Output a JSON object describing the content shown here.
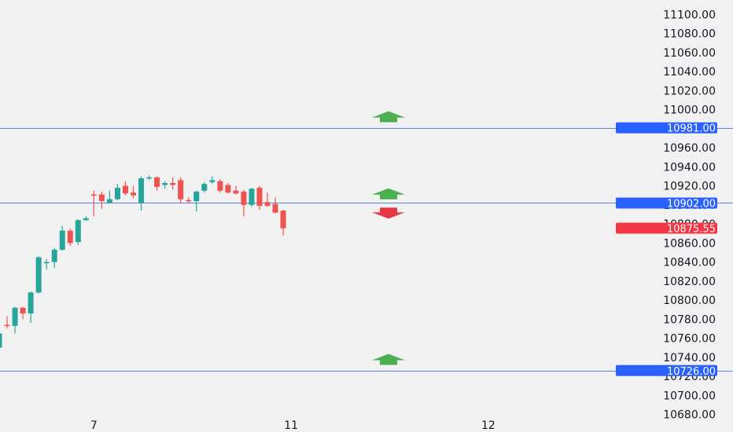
{
  "chart_data": {
    "type": "candlestick",
    "title": "",
    "xlabel": "",
    "ylabel": "",
    "ylim": [
      10680,
      11100
    ],
    "grid": false,
    "colors": {
      "up": "#26a69a",
      "down": "#ef5350",
      "level_line": "#5b7fe6",
      "level_tag": "#2962ff",
      "last_tag": "#f23645",
      "arrow_up": "#4caf50",
      "arrow_down": "#e53946",
      "background": "#f1f1f1"
    },
    "y_ticks": [
      "11100.00",
      "11080.00",
      "11060.00",
      "11040.00",
      "11020.00",
      "11000.00",
      "10980.00",
      "10960.00",
      "10940.00",
      "10920.00",
      "10900.00",
      "10880.00",
      "10860.00",
      "10840.00",
      "10820.00",
      "10800.00",
      "10780.00",
      "10760.00",
      "10740.00",
      "10720.00",
      "10700.00",
      "10680.00"
    ],
    "y_tick_values": [
      11100,
      11080,
      11060,
      11040,
      11020,
      11000,
      10980,
      10960,
      10940,
      10920,
      10900,
      10880,
      10860,
      10840,
      10820,
      10800,
      10780,
      10760,
      10740,
      10720,
      10700,
      10680
    ],
    "x_ticks": [
      {
        "label": "7",
        "index": 12
      },
      {
        "label": "11",
        "index": 37
      },
      {
        "label": "12",
        "index": 62
      }
    ],
    "candles": [
      {
        "o": 10750,
        "h": 10770,
        "l": 10748,
        "c": 10765
      },
      {
        "o": 10774,
        "h": 10783,
        "l": 10770,
        "c": 10773
      },
      {
        "o": 10773,
        "h": 10793,
        "l": 10765,
        "c": 10792
      },
      {
        "o": 10792,
        "h": 10793,
        "l": 10780,
        "c": 10786
      },
      {
        "o": 10786,
        "h": 10809,
        "l": 10776,
        "c": 10808
      },
      {
        "o": 10808,
        "h": 10846,
        "l": 10807,
        "c": 10845
      },
      {
        "o": 10839,
        "h": 10843,
        "l": 10832,
        "c": 10840
      },
      {
        "o": 10840,
        "h": 10855,
        "l": 10834,
        "c": 10853
      },
      {
        "o": 10853,
        "h": 10878,
        "l": 10852,
        "c": 10873
      },
      {
        "o": 10873,
        "h": 10875,
        "l": 10857,
        "c": 10860
      },
      {
        "o": 10861,
        "h": 10885,
        "l": 10858,
        "c": 10884
      },
      {
        "o": 10884,
        "h": 10888,
        "l": 10883,
        "c": 10886
      },
      {
        "o": 10911,
        "h": 10915,
        "l": 10888,
        "c": 10910
      },
      {
        "o": 10911,
        "h": 10914,
        "l": 10896,
        "c": 10904
      },
      {
        "o": 10902,
        "h": 10915,
        "l": 10902,
        "c": 10906
      },
      {
        "o": 10906,
        "h": 10922,
        "l": 10905,
        "c": 10918
      },
      {
        "o": 10920,
        "h": 10925,
        "l": 10910,
        "c": 10912
      },
      {
        "o": 10913,
        "h": 10920,
        "l": 10907,
        "c": 10910
      },
      {
        "o": 10902,
        "h": 10930,
        "l": 10894,
        "c": 10928
      },
      {
        "o": 10928,
        "h": 10931,
        "l": 10926,
        "c": 10929
      },
      {
        "o": 10929,
        "h": 10930,
        "l": 10915,
        "c": 10919
      },
      {
        "o": 10921,
        "h": 10925,
        "l": 10917,
        "c": 10923
      },
      {
        "o": 10923,
        "h": 10929,
        "l": 10916,
        "c": 10921
      },
      {
        "o": 10926,
        "h": 10929,
        "l": 10902,
        "c": 10906
      },
      {
        "o": 10905,
        "h": 10908,
        "l": 10902,
        "c": 10904
      },
      {
        "o": 10904,
        "h": 10915,
        "l": 10893,
        "c": 10914
      },
      {
        "o": 10915,
        "h": 10924,
        "l": 10913,
        "c": 10922
      },
      {
        "o": 10924,
        "h": 10930,
        "l": 10922,
        "c": 10926
      },
      {
        "o": 10925,
        "h": 10927,
        "l": 10913,
        "c": 10915
      },
      {
        "o": 10921,
        "h": 10923,
        "l": 10912,
        "c": 10913
      },
      {
        "o": 10915,
        "h": 10920,
        "l": 10911,
        "c": 10912
      },
      {
        "o": 10914,
        "h": 10916,
        "l": 10888,
        "c": 10900
      },
      {
        "o": 10900,
        "h": 10918,
        "l": 10898,
        "c": 10917
      },
      {
        "o": 10918,
        "h": 10920,
        "l": 10895,
        "c": 10899
      },
      {
        "o": 10903,
        "h": 10913,
        "l": 10898,
        "c": 10899
      },
      {
        "o": 10901,
        "h": 10908,
        "l": 10891,
        "c": 10892
      },
      {
        "o": 10894,
        "h": 10895,
        "l": 10868,
        "c": 10875.55
      }
    ],
    "levels": [
      {
        "value": 10981,
        "label": "10981.00"
      },
      {
        "value": 10902,
        "label": "10902.00"
      },
      {
        "value": 10726,
        "label": "10726.00"
      }
    ],
    "last_price": {
      "value": 10875.55,
      "label": "10875.55"
    },
    "arrows": [
      {
        "direction": "up",
        "value": 10991
      },
      {
        "direction": "up",
        "value": 10910
      },
      {
        "direction": "down",
        "value": 10893
      },
      {
        "direction": "up",
        "value": 10736
      }
    ]
  }
}
